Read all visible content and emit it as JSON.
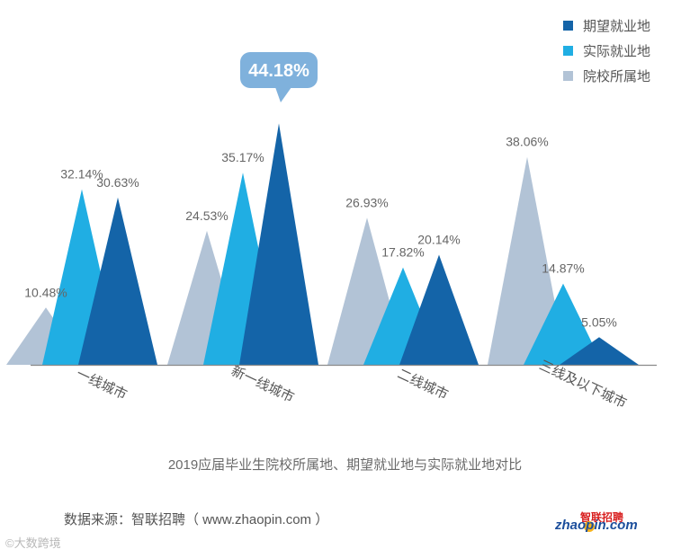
{
  "chart_data": {
    "type": "area",
    "categories": [
      "一线城市",
      "新一线城市",
      "二线城市",
      "三线及以下城市"
    ],
    "series": [
      {
        "name": "院校所属地",
        "color": "#b2c3d6",
        "values": [
          10.48,
          24.53,
          26.93,
          38.06
        ]
      },
      {
        "name": "实际就业地",
        "color": "#20aee3",
        "values": [
          32.14,
          35.17,
          17.82,
          14.87
        ]
      },
      {
        "name": "期望就业地",
        "color": "#1464a8",
        "values": [
          30.63,
          44.18,
          20.14,
          5.05
        ]
      }
    ],
    "value_labels": [
      [
        "10.48%",
        "32.14%",
        "30.63%"
      ],
      [
        "24.53%",
        "35.17%",
        "44.18%"
      ],
      [
        "26.93%",
        "17.82%",
        "20.14%"
      ],
      [
        "38.06%",
        "14.87%",
        "5.05%"
      ]
    ],
    "highlight": {
      "category_index": 1,
      "series_index": 2,
      "label": "44.18%",
      "color": "#7fb1dc"
    },
    "legend": [
      "期望就业地",
      "实际就业地",
      "院校所属地"
    ],
    "legend_position": "top-right",
    "ylim": [
      0,
      50
    ]
  },
  "caption": "2019应届毕业生院校所属地、期望就业地与实际就业地对比",
  "source": "数据来源：智联招聘（ www.zhaopin.com ）",
  "logo": {
    "cn": "智联招聘",
    "en": "zhaopin.com"
  },
  "watermark": "©大数跨境"
}
